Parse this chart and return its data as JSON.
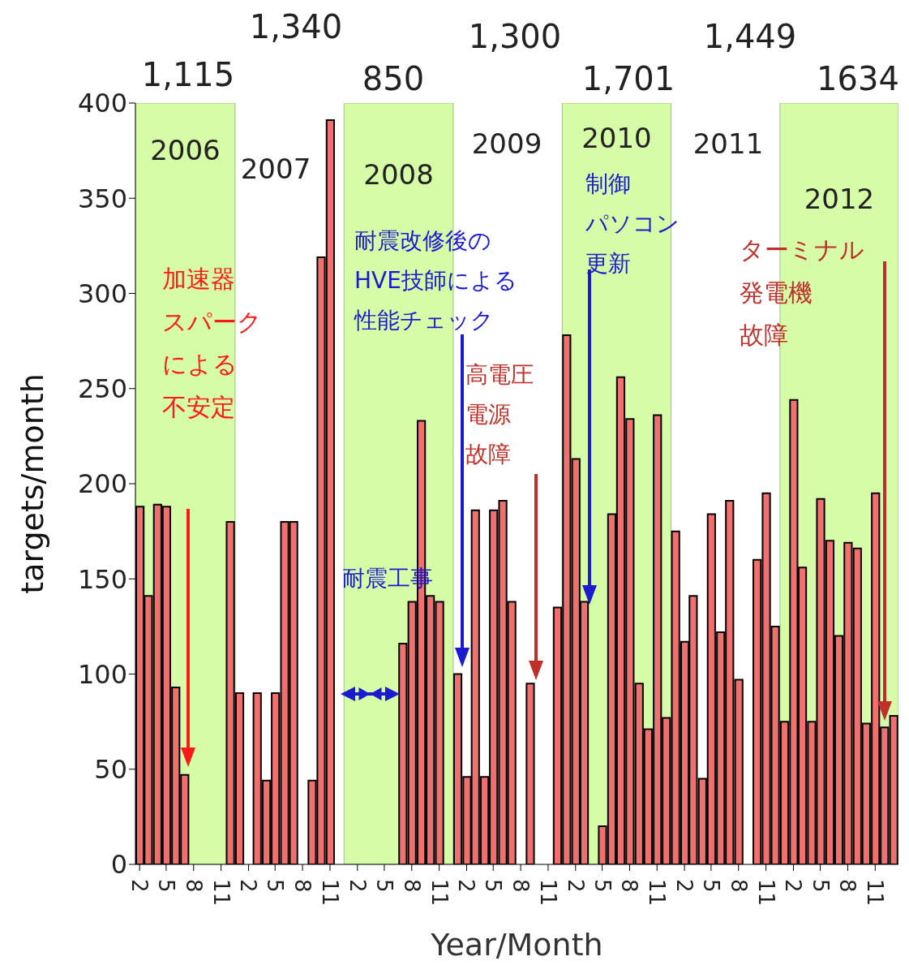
{
  "chart_data": {
    "type": "bar",
    "xlabel": "Year/Month",
    "ylabel": "targets/month",
    "x": [
      "2006-02-15",
      "2006-03-15",
      "2006-04-15",
      "2006-05-15",
      "2006-06-15",
      "2006-07-15",
      "2006-08-15",
      "2006-09-15",
      "2006-10-15",
      "2006-11-15",
      "2006-12-15",
      "2007-01-15",
      "2007-02-15",
      "2007-03-15",
      "2007-04-15",
      "2007-05-15",
      "2007-06-15",
      "2007-07-15",
      "2007-08-15",
      "2007-09-15",
      "2007-10-15",
      "2007-11-15",
      "2007-12-15",
      "2008-01-15",
      "2008-02-15",
      "2008-03-15",
      "2008-04-15",
      "2008-05-15",
      "2008-06-15",
      "2008-07-15",
      "2008-08-15",
      "2008-09-15",
      "2008-10-15",
      "2008-11-15",
      "2008-12-15",
      "2009-01-15",
      "2009-02-15",
      "2009-03-15",
      "2009-04-15",
      "2009-05-15",
      "2009-06-15",
      "2009-07-15",
      "2009-08-15",
      "2009-09-15",
      "2009-10-15",
      "2009-11-15",
      "2009-12-15",
      "2010-01-15",
      "2010-02-15",
      "2010-03-15",
      "2010-04-15",
      "2010-05-15",
      "2010-06-15",
      "2010-07-15",
      "2010-08-15",
      "2010-09-15",
      "2010-10-15",
      "2010-11-15",
      "2010-12-15",
      "2011-01-15",
      "2011-02-15",
      "2011-03-15",
      "2011-04-15",
      "2011-05-15",
      "2011-06-15",
      "2011-07-15",
      "2011-08-15",
      "2011-09-15",
      "2011-10-15",
      "2011-11-15",
      "2011-12-15",
      "2012-01-15",
      "2012-02-15",
      "2012-03-15",
      "2012-04-15",
      "2012-05-15",
      "2012-06-15",
      "2012-07-15",
      "2012-08-15",
      "2012-09-15",
      "2012-10-15",
      "2012-11-15",
      "2012-12-15",
      "2013-01-15"
    ],
    "values": [
      188,
      141,
      189,
      188,
      93,
      47,
      0,
      0,
      0,
      0,
      180,
      90,
      0,
      90,
      44,
      90,
      180,
      180,
      0,
      44,
      319,
      391,
      0,
      0,
      0,
      0,
      0,
      0,
      0,
      116,
      138,
      233,
      141,
      138,
      0,
      100,
      46,
      186,
      46,
      186,
      191,
      138,
      0,
      95,
      0,
      0,
      135,
      278,
      213,
      138,
      0,
      20,
      184,
      256,
      234,
      95,
      71,
      236,
      77,
      175,
      117,
      141,
      45,
      184,
      122,
      191,
      97,
      0,
      160,
      195,
      125,
      75,
      244,
      156,
      75,
      192,
      170,
      120,
      169,
      166,
      74,
      195,
      72,
      78
    ],
    "color": "#f07070",
    "xlim": [
      "2006-02-01",
      "2013-02-01"
    ],
    "xticks": [
      {
        "value": "2006-02-15",
        "label": "2"
      },
      {
        "value": "2006-05-15",
        "label": "5"
      },
      {
        "value": "2006-08-15",
        "label": "8"
      },
      {
        "value": "2006-11-15",
        "label": "11"
      },
      {
        "value": "2007-02-15",
        "label": "2"
      },
      {
        "value": "2007-05-15",
        "label": "5"
      },
      {
        "value": "2007-08-15",
        "label": "8"
      },
      {
        "value": "2007-11-15",
        "label": "11"
      },
      {
        "value": "2008-02-15",
        "label": "2"
      },
      {
        "value": "2008-05-15",
        "label": "5"
      },
      {
        "value": "2008-08-15",
        "label": "8"
      },
      {
        "value": "2008-11-15",
        "label": "11"
      },
      {
        "value": "2009-02-15",
        "label": "2"
      },
      {
        "value": "2009-05-15",
        "label": "5"
      },
      {
        "value": "2009-08-15",
        "label": "8"
      },
      {
        "value": "2009-11-15",
        "label": "11"
      },
      {
        "value": "2010-02-15",
        "label": "2"
      },
      {
        "value": "2010-05-15",
        "label": "5"
      },
      {
        "value": "2010-08-15",
        "label": "8"
      },
      {
        "value": "2010-11-15",
        "label": "11"
      },
      {
        "value": "2011-02-15",
        "label": "2"
      },
      {
        "value": "2011-05-15",
        "label": "5"
      },
      {
        "value": "2011-08-15",
        "label": "8"
      },
      {
        "value": "2011-11-15",
        "label": "11"
      },
      {
        "value": "2012-02-15",
        "label": "2"
      },
      {
        "value": "2012-05-15",
        "label": "5"
      },
      {
        "value": "2012-08-15",
        "label": "8"
      },
      {
        "value": "2012-11-15",
        "label": "11"
      }
    ],
    "ylim": [
      0,
      400
    ],
    "yticks": [
      0,
      50,
      100,
      150,
      200,
      250,
      300,
      350,
      400
    ],
    "bands": [
      {
        "axis": "x",
        "from": "2006-02-01",
        "to": "2007-01-01",
        "label": "2006",
        "color": "#d6fca8"
      },
      {
        "axis": "x",
        "from": "2008-01-01",
        "to": "2009-01-01",
        "label": "2008",
        "color": "#d6fca8"
      },
      {
        "axis": "x",
        "from": "2010-01-01",
        "to": "2011-01-01",
        "label": "2010",
        "color": "#d6fca8"
      },
      {
        "axis": "x",
        "from": "2012-01-01",
        "to": "2013-02-01",
        "label": "2012",
        "color": "#d6fca8"
      }
    ],
    "annotations": [
      "加速器スパークによる不安定",
      "耐震改修後のHVE技師による性能チェック",
      "高電圧電源故障",
      "制御パソコン更新",
      "ターミナル発電機故障",
      "耐震工事",
      "1,115",
      "1,340",
      "850",
      "1,300",
      "1,701",
      "1,449",
      "1634",
      "2007",
      "2009",
      "2011"
    ]
  }
}
